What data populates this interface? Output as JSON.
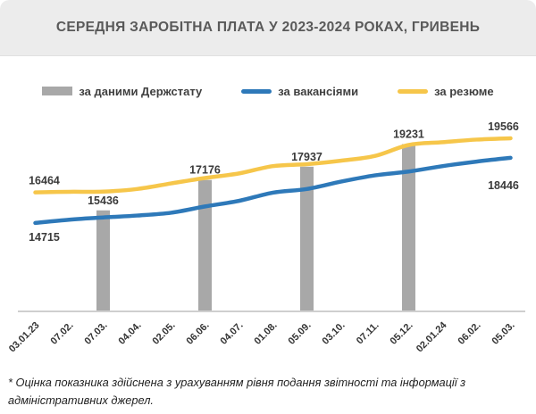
{
  "chart_data": {
    "type": "line+bar",
    "title": "СЕРЕДНЯ ЗАРОБІТНА ПЛАТА У 2023-2024 РОКАХ, ГРИВЕНЬ",
    "categories": [
      "03.01.23",
      "07.02.",
      "07.03.",
      "04.04.",
      "02.05.",
      "06.06.",
      "04.07.",
      "01.08.",
      "05.09.",
      "03.10.",
      "07.11.",
      "05.12.",
      "02.01.24",
      "06.02.",
      "05.03."
    ],
    "series": [
      {
        "name": "за даними Держстату",
        "type": "bar",
        "color": "#A8A8A8",
        "values": [
          null,
          null,
          15436,
          null,
          null,
          17176,
          null,
          null,
          17937,
          null,
          null,
          19231,
          null,
          null,
          null
        ]
      },
      {
        "name": "за вакансіями",
        "type": "line",
        "color": "#2E79B9",
        "values": [
          14715,
          14900,
          15030,
          15140,
          15300,
          15660,
          15980,
          16450,
          16660,
          17080,
          17440,
          17660,
          17970,
          18230,
          18446
        ]
      },
      {
        "name": "за резюме",
        "type": "line",
        "color": "#F6C64A",
        "values": [
          16464,
          16500,
          16510,
          16660,
          16980,
          17290,
          17550,
          17970,
          18080,
          18280,
          18550,
          19180,
          19340,
          19490,
          19566
        ]
      }
    ],
    "point_labels": [
      {
        "series": 1,
        "point": 0,
        "text": "14715",
        "placement": "below-start"
      },
      {
        "series": 2,
        "point": 0,
        "text": "16464",
        "placement": "above-start"
      },
      {
        "series": 1,
        "point": 14,
        "text": "18446",
        "placement": "below-end"
      },
      {
        "series": 2,
        "point": 14,
        "text": "19566",
        "placement": "above-end"
      }
    ],
    "bar_labels": [
      "15436",
      "17176",
      "17937",
      "19231"
    ],
    "xlabel": "",
    "ylabel": "",
    "grid": false,
    "legend_position": "top",
    "axis_color": "#CFCFCF"
  },
  "footnote": "* Оцінка показника здійснена з урахуванням рівня подання звітності та інформації з адміністративних джерел."
}
